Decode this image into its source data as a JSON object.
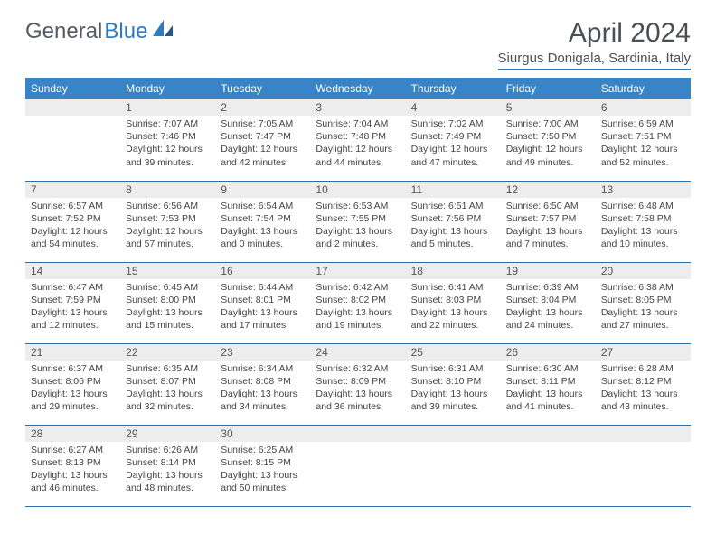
{
  "brand": {
    "part1": "General",
    "part2": "Blue"
  },
  "title": "April 2024",
  "location": "Siurgus Donigala, Sardinia, Italy",
  "colors": {
    "header_bg": "#3984c6",
    "header_text": "#ffffff",
    "daynum_bg": "#ededed",
    "border": "#2f6fa8",
    "title_color": "#4a4f54",
    "logo_gray": "#555c63",
    "logo_blue": "#2f7bbf",
    "body_text": "#444444",
    "page_bg": "#ffffff"
  },
  "weekdays": [
    "Sunday",
    "Monday",
    "Tuesday",
    "Wednesday",
    "Thursday",
    "Friday",
    "Saturday"
  ],
  "weeks": [
    [
      {
        "day": "",
        "sunrise": "",
        "sunset": "",
        "daylight": ""
      },
      {
        "day": "1",
        "sunrise": "Sunrise: 7:07 AM",
        "sunset": "Sunset: 7:46 PM",
        "daylight": "Daylight: 12 hours and 39 minutes."
      },
      {
        "day": "2",
        "sunrise": "Sunrise: 7:05 AM",
        "sunset": "Sunset: 7:47 PM",
        "daylight": "Daylight: 12 hours and 42 minutes."
      },
      {
        "day": "3",
        "sunrise": "Sunrise: 7:04 AM",
        "sunset": "Sunset: 7:48 PM",
        "daylight": "Daylight: 12 hours and 44 minutes."
      },
      {
        "day": "4",
        "sunrise": "Sunrise: 7:02 AM",
        "sunset": "Sunset: 7:49 PM",
        "daylight": "Daylight: 12 hours and 47 minutes."
      },
      {
        "day": "5",
        "sunrise": "Sunrise: 7:00 AM",
        "sunset": "Sunset: 7:50 PM",
        "daylight": "Daylight: 12 hours and 49 minutes."
      },
      {
        "day": "6",
        "sunrise": "Sunrise: 6:59 AM",
        "sunset": "Sunset: 7:51 PM",
        "daylight": "Daylight: 12 hours and 52 minutes."
      }
    ],
    [
      {
        "day": "7",
        "sunrise": "Sunrise: 6:57 AM",
        "sunset": "Sunset: 7:52 PM",
        "daylight": "Daylight: 12 hours and 54 minutes."
      },
      {
        "day": "8",
        "sunrise": "Sunrise: 6:56 AM",
        "sunset": "Sunset: 7:53 PM",
        "daylight": "Daylight: 12 hours and 57 minutes."
      },
      {
        "day": "9",
        "sunrise": "Sunrise: 6:54 AM",
        "sunset": "Sunset: 7:54 PM",
        "daylight": "Daylight: 13 hours and 0 minutes."
      },
      {
        "day": "10",
        "sunrise": "Sunrise: 6:53 AM",
        "sunset": "Sunset: 7:55 PM",
        "daylight": "Daylight: 13 hours and 2 minutes."
      },
      {
        "day": "11",
        "sunrise": "Sunrise: 6:51 AM",
        "sunset": "Sunset: 7:56 PM",
        "daylight": "Daylight: 13 hours and 5 minutes."
      },
      {
        "day": "12",
        "sunrise": "Sunrise: 6:50 AM",
        "sunset": "Sunset: 7:57 PM",
        "daylight": "Daylight: 13 hours and 7 minutes."
      },
      {
        "day": "13",
        "sunrise": "Sunrise: 6:48 AM",
        "sunset": "Sunset: 7:58 PM",
        "daylight": "Daylight: 13 hours and 10 minutes."
      }
    ],
    [
      {
        "day": "14",
        "sunrise": "Sunrise: 6:47 AM",
        "sunset": "Sunset: 7:59 PM",
        "daylight": "Daylight: 13 hours and 12 minutes."
      },
      {
        "day": "15",
        "sunrise": "Sunrise: 6:45 AM",
        "sunset": "Sunset: 8:00 PM",
        "daylight": "Daylight: 13 hours and 15 minutes."
      },
      {
        "day": "16",
        "sunrise": "Sunrise: 6:44 AM",
        "sunset": "Sunset: 8:01 PM",
        "daylight": "Daylight: 13 hours and 17 minutes."
      },
      {
        "day": "17",
        "sunrise": "Sunrise: 6:42 AM",
        "sunset": "Sunset: 8:02 PM",
        "daylight": "Daylight: 13 hours and 19 minutes."
      },
      {
        "day": "18",
        "sunrise": "Sunrise: 6:41 AM",
        "sunset": "Sunset: 8:03 PM",
        "daylight": "Daylight: 13 hours and 22 minutes."
      },
      {
        "day": "19",
        "sunrise": "Sunrise: 6:39 AM",
        "sunset": "Sunset: 8:04 PM",
        "daylight": "Daylight: 13 hours and 24 minutes."
      },
      {
        "day": "20",
        "sunrise": "Sunrise: 6:38 AM",
        "sunset": "Sunset: 8:05 PM",
        "daylight": "Daylight: 13 hours and 27 minutes."
      }
    ],
    [
      {
        "day": "21",
        "sunrise": "Sunrise: 6:37 AM",
        "sunset": "Sunset: 8:06 PM",
        "daylight": "Daylight: 13 hours and 29 minutes."
      },
      {
        "day": "22",
        "sunrise": "Sunrise: 6:35 AM",
        "sunset": "Sunset: 8:07 PM",
        "daylight": "Daylight: 13 hours and 32 minutes."
      },
      {
        "day": "23",
        "sunrise": "Sunrise: 6:34 AM",
        "sunset": "Sunset: 8:08 PM",
        "daylight": "Daylight: 13 hours and 34 minutes."
      },
      {
        "day": "24",
        "sunrise": "Sunrise: 6:32 AM",
        "sunset": "Sunset: 8:09 PM",
        "daylight": "Daylight: 13 hours and 36 minutes."
      },
      {
        "day": "25",
        "sunrise": "Sunrise: 6:31 AM",
        "sunset": "Sunset: 8:10 PM",
        "daylight": "Daylight: 13 hours and 39 minutes."
      },
      {
        "day": "26",
        "sunrise": "Sunrise: 6:30 AM",
        "sunset": "Sunset: 8:11 PM",
        "daylight": "Daylight: 13 hours and 41 minutes."
      },
      {
        "day": "27",
        "sunrise": "Sunrise: 6:28 AM",
        "sunset": "Sunset: 8:12 PM",
        "daylight": "Daylight: 13 hours and 43 minutes."
      }
    ],
    [
      {
        "day": "28",
        "sunrise": "Sunrise: 6:27 AM",
        "sunset": "Sunset: 8:13 PM",
        "daylight": "Daylight: 13 hours and 46 minutes."
      },
      {
        "day": "29",
        "sunrise": "Sunrise: 6:26 AM",
        "sunset": "Sunset: 8:14 PM",
        "daylight": "Daylight: 13 hours and 48 minutes."
      },
      {
        "day": "30",
        "sunrise": "Sunrise: 6:25 AM",
        "sunset": "Sunset: 8:15 PM",
        "daylight": "Daylight: 13 hours and 50 minutes."
      },
      {
        "day": "",
        "sunrise": "",
        "sunset": "",
        "daylight": ""
      },
      {
        "day": "",
        "sunrise": "",
        "sunset": "",
        "daylight": ""
      },
      {
        "day": "",
        "sunrise": "",
        "sunset": "",
        "daylight": ""
      },
      {
        "day": "",
        "sunrise": "",
        "sunset": "",
        "daylight": ""
      }
    ]
  ]
}
